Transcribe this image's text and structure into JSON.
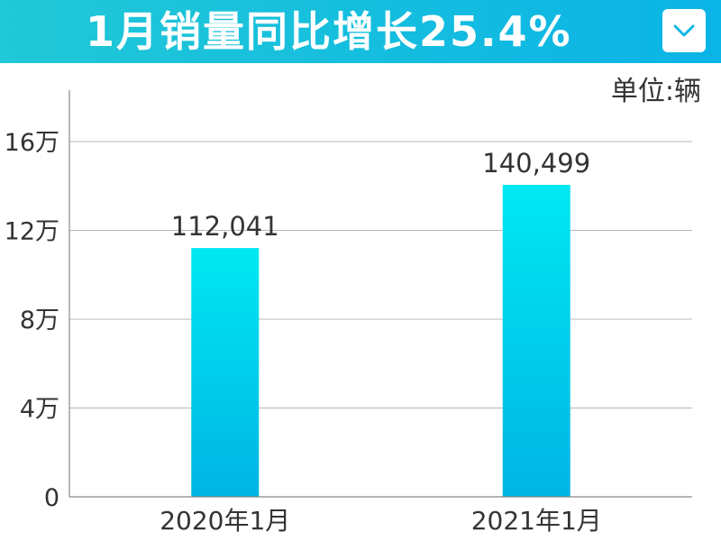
{
  "header": {
    "title": "1月销量同比增长25.4%",
    "dropdown_icon": "chevron-down-icon",
    "accent_start": "#21c8d6",
    "accent_end": "#0ab4e6"
  },
  "chart_data": {
    "type": "bar",
    "title": "1月销量同比增长25.4%",
    "unit_label": "单位:辆",
    "categories": [
      "2020年1月",
      "2021年1月"
    ],
    "values": [
      112041,
      140499
    ],
    "data_labels": [
      "112,041",
      "140,499"
    ],
    "ylim": [
      0,
      160000
    ],
    "yticks": [
      0,
      40000,
      80000,
      120000,
      160000
    ],
    "ytick_labels": [
      "0",
      "4万",
      "8万",
      "12万",
      "16万"
    ],
    "grid": true,
    "bar_color_top": "#00e8f2",
    "bar_color_bottom": "#00b4e4"
  }
}
